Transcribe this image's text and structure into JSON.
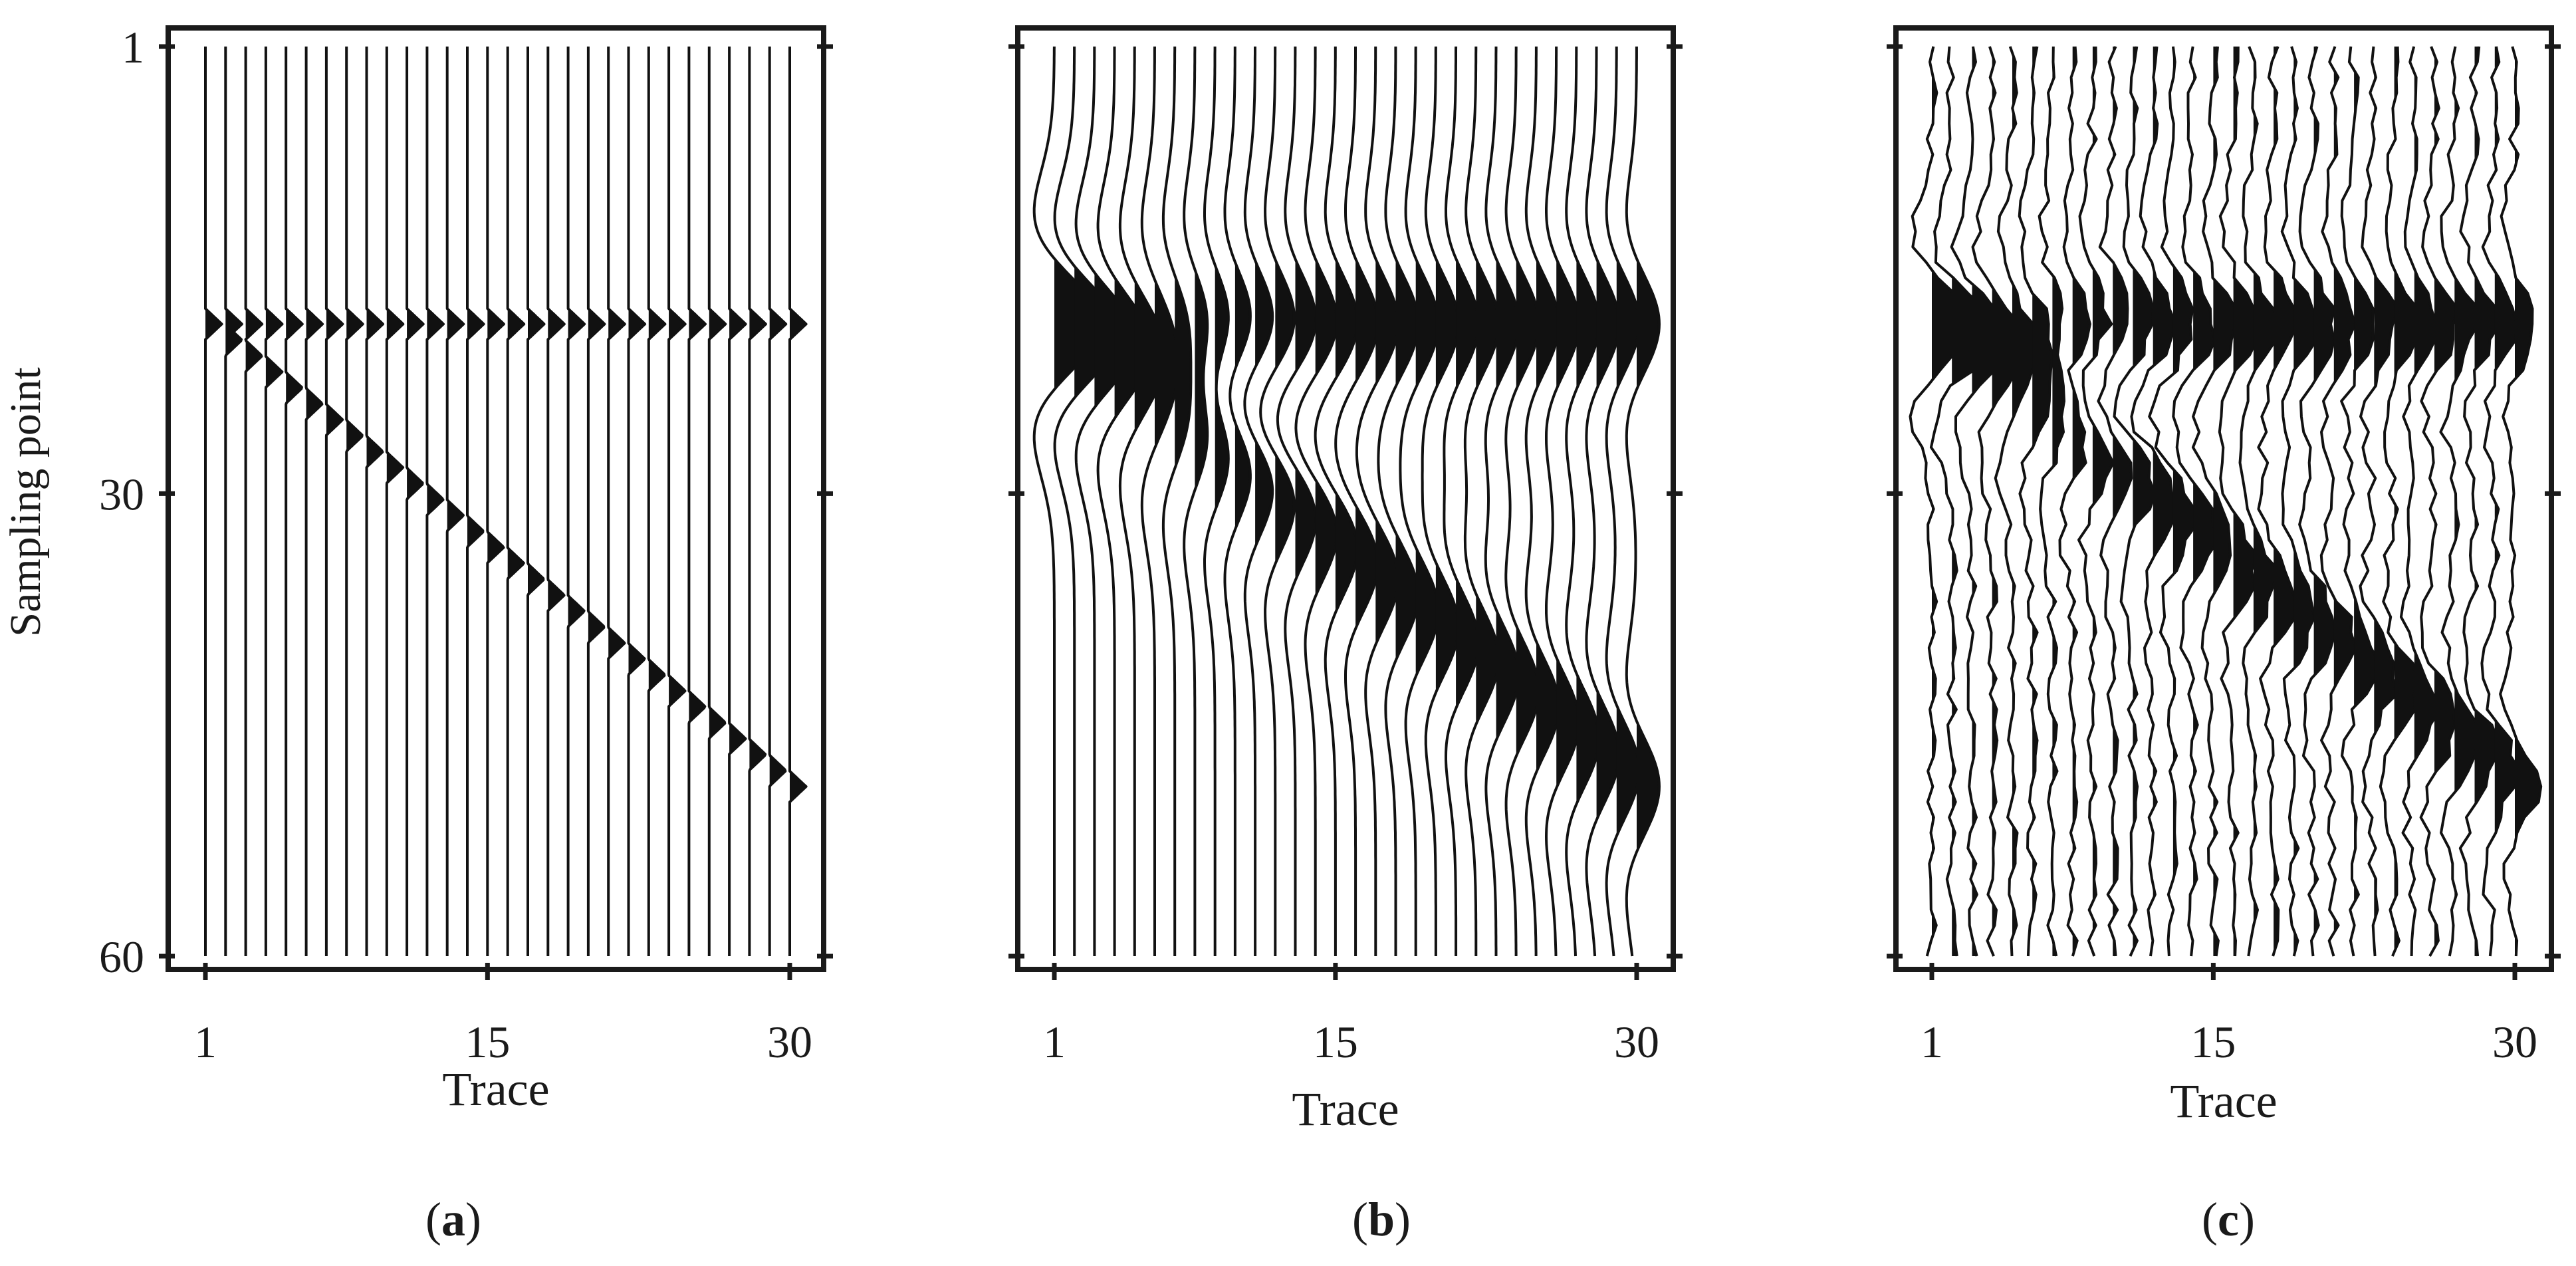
{
  "figure": {
    "ylabel": "Sampling point",
    "panels": [
      {
        "caption": "a",
        "xlabel": "Trace"
      },
      {
        "caption": "b",
        "xlabel": "Trace"
      },
      {
        "caption": "c",
        "xlabel": "Trace"
      }
    ]
  },
  "chart_data": [
    {
      "type": "wiggle",
      "panel": "a",
      "description_role": "synthetic seismic gather, spike events",
      "traces": {
        "start": 1,
        "end": 30,
        "count": 30
      },
      "x_ticks": [
        1,
        15,
        30
      ],
      "y_ticks": [
        1,
        30,
        60
      ],
      "xlim": [
        1,
        30
      ],
      "ylim": [
        1,
        60
      ],
      "xlabel": "Trace",
      "ylabel": "Sampling point",
      "fill": "positive",
      "events": [
        {
          "shape": "flat",
          "sample_at_trace_1": 19,
          "sample_at_trace_30": 19,
          "amplitude": 0.9
        },
        {
          "shape": "linear",
          "sample_at_trace_1": 19,
          "sample_at_trace_30": 49,
          "amplitude": 0.9
        }
      ],
      "noise": 0
    },
    {
      "type": "wiggle",
      "panel": "b",
      "description_role": "smooth wavelet reconstruction",
      "traces": {
        "start": 1,
        "end": 30,
        "count": 30
      },
      "x_ticks": [
        1,
        15,
        30
      ],
      "y_ticks": [
        1,
        30,
        60
      ],
      "xlim": [
        1,
        30
      ],
      "ylim": [
        1,
        60
      ],
      "xlabel": "Trace",
      "fill": "positive",
      "events": [
        {
          "shape": "flat",
          "sample_at_trace_1": 19,
          "sample_at_trace_30": 19,
          "amplitude": 1.25,
          "width": 6
        },
        {
          "shape": "linear",
          "sample_at_trace_1": 19,
          "sample_at_trace_30": 49,
          "amplitude": 1.25,
          "width": 6
        }
      ],
      "noise": 0
    },
    {
      "type": "wiggle",
      "panel": "c",
      "description_role": "noisy gather",
      "traces": {
        "start": 1,
        "end": 30,
        "count": 30
      },
      "x_ticks": [
        1,
        15,
        30
      ],
      "y_ticks": [
        1,
        30,
        60
      ],
      "xlim": [
        1,
        30
      ],
      "ylim": [
        1,
        60
      ],
      "xlabel": "Trace",
      "fill": "positive",
      "events": [
        {
          "shape": "flat",
          "sample_at_trace_1": 19,
          "sample_at_trace_30": 19,
          "amplitude": 1.2,
          "width": 5
        },
        {
          "shape": "linear",
          "sample_at_trace_1": 19,
          "sample_at_trace_30": 49,
          "amplitude": 1.2,
          "width": 5
        }
      ],
      "noise": 0.28
    }
  ]
}
